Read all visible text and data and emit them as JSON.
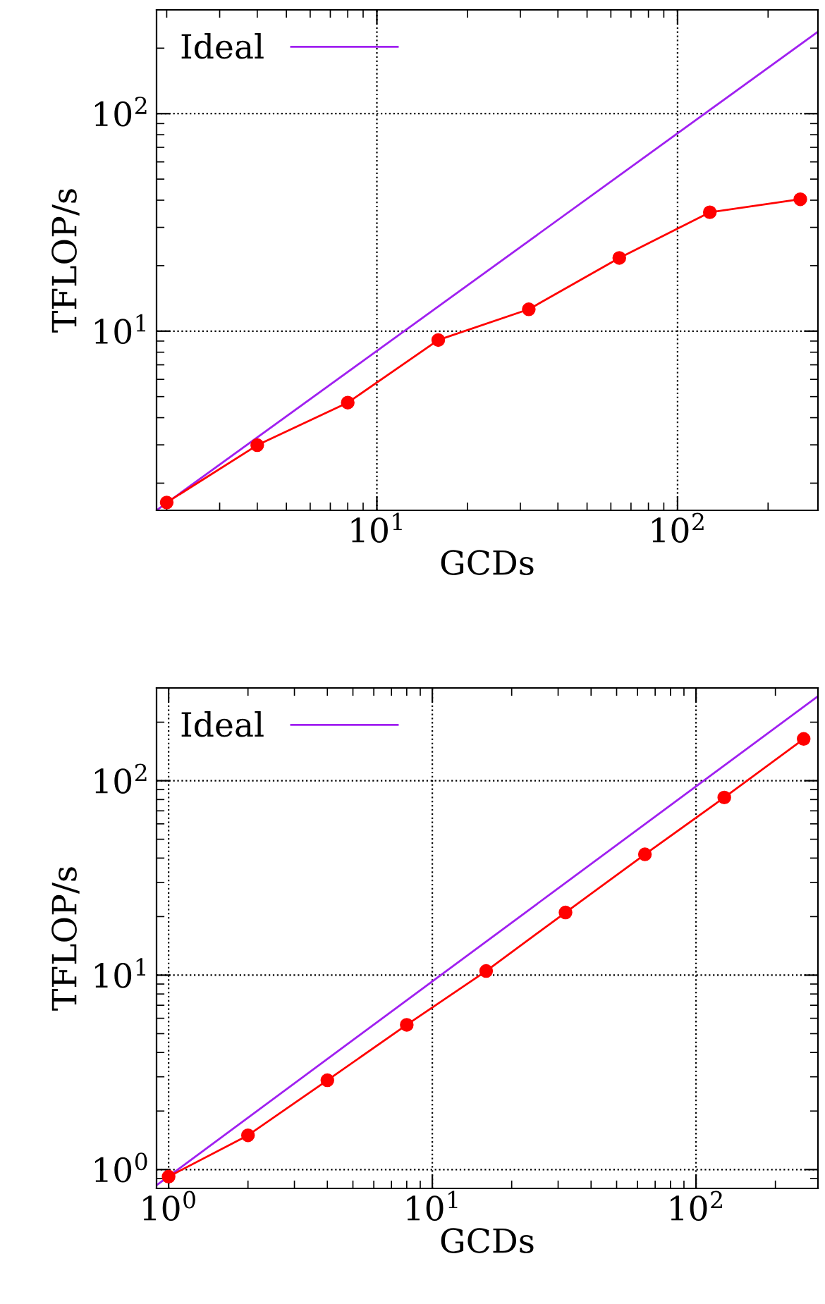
{
  "chart_data": [
    {
      "type": "line",
      "xlabel": "GCDs",
      "ylabel": "TFLOP/s",
      "log": "xy",
      "grid": true,
      "legend": "top left",
      "marker": "circle",
      "xlim": [
        1.85,
        293
      ],
      "ylim": [
        1.5,
        300
      ],
      "xticks": [
        {
          "value": 10,
          "label": "10$^{1}$"
        },
        {
          "value": 100,
          "label": "10$^{2}$"
        }
      ],
      "yticks": [
        {
          "value": 10,
          "label": "10$^{1}$"
        },
        {
          "value": 100,
          "label": "10$^{2}$"
        }
      ],
      "series": [
        {
          "name": "Ideal",
          "color": "#a020f0",
          "type": "line",
          "marker": "none",
          "x": [
            1.85,
            293
          ],
          "values": [
            1.5,
            238
          ]
        },
        {
          "color": "#ff0000",
          "x": [
            2,
            4,
            8,
            16,
            32,
            64,
            128,
            256
          ],
          "values": [
            1.63,
            2.99,
            4.69,
            9.1,
            12.6,
            21.7,
            35.2,
            40.4
          ]
        }
      ]
    },
    {
      "type": "line",
      "xlabel": "GCDs",
      "ylabel": "TFLOP/s",
      "log": "xy",
      "grid": true,
      "legend": "top left",
      "marker": "circle",
      "xlim": [
        0.9,
        290
      ],
      "ylim": [
        0.8,
        300
      ],
      "xticks": [
        {
          "value": 1,
          "label": "10$^{0}$"
        },
        {
          "value": 10,
          "label": "10$^{1}$"
        },
        {
          "value": 100,
          "label": "10$^{2}$"
        }
      ],
      "yticks": [
        {
          "value": 1,
          "label": "10$^{0}$"
        },
        {
          "value": 10,
          "label": "10$^{1}$"
        },
        {
          "value": 100,
          "label": "10$^{2}$"
        }
      ],
      "series": [
        {
          "name": "Ideal",
          "color": "#a020f0",
          "type": "line",
          "marker": "none",
          "x": [
            0.9,
            290
          ],
          "values": [
            0.83,
            272
          ]
        },
        {
          "color": "#ff0000",
          "x": [
            1,
            2,
            4,
            8,
            16,
            32,
            64,
            128,
            256
          ],
          "values": [
            0.92,
            1.5,
            2.88,
            5.55,
            10.5,
            21.0,
            41.8,
            82.0,
            164
          ]
        }
      ]
    }
  ]
}
